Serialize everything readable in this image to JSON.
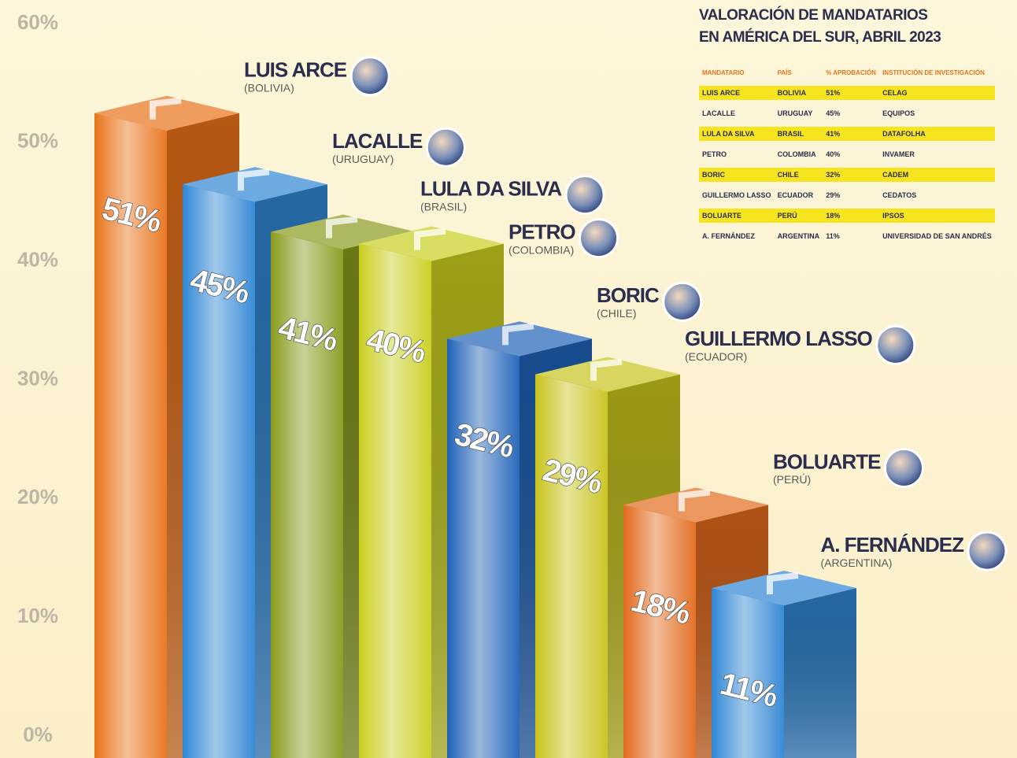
{
  "chart_data": {
    "type": "bar3d",
    "categories": [
      "LUIS ARCE",
      "LACALLE",
      "LULA DA SILVA",
      "PETRO",
      "BORIC",
      "GUILLERMO LASSO",
      "BOLUARTE",
      "A. FERNÁNDEZ"
    ],
    "countries": [
      "(BOLIVIA)",
      "(URUGUAY)",
      "(BRASIL)",
      "(COLOMBIA)",
      "(CHILE)",
      "(ECUADOR)",
      "(PERÚ)",
      "(ARGENTINA)"
    ],
    "values": [
      51,
      45,
      41,
      40,
      32,
      29,
      18,
      11
    ],
    "value_labels": [
      "51%",
      "45%",
      "41%",
      "40%",
      "32%",
      "29%",
      "18%",
      "11%"
    ],
    "colors": [
      "#e8731a",
      "#2f86d4",
      "#8a9a1c",
      "#c9cf1e",
      "#1f62b8",
      "#c8c41c",
      "#e26a1c",
      "#2f86d4"
    ],
    "ylim": [
      0,
      60
    ],
    "yticks": [
      {
        "value": 0,
        "label": "0%"
      },
      {
        "value": 10,
        "label": "10%"
      },
      {
        "value": 20,
        "label": "20%"
      },
      {
        "value": 30,
        "label": "30%"
      },
      {
        "value": 40,
        "label": "40%"
      },
      {
        "value": 50,
        "label": "50%"
      },
      {
        "value": 60,
        "label": "60%"
      }
    ]
  },
  "table": {
    "title": [
      "VALORACIÓN DE MANDATARIOS",
      "EN AMÉRICA DEL SUR, ABRIL 2023"
    ],
    "header": [
      "MANDATARIO",
      "PAÍS",
      "% APROBACIÓN",
      "INSTITUCIÓN DE INVESTIGACIÓN"
    ],
    "rows": [
      [
        "LUIS ARCE",
        "BOLIVIA",
        "51%",
        "CELAG"
      ],
      [
        "LACALLE",
        "URUGUAY",
        "45%",
        "EQUIPOS"
      ],
      [
        "LULA DA SILVA",
        "BRASIL",
        "41%",
        "DATAFOLHA"
      ],
      [
        "PETRO",
        "COLOMBIA",
        "40%",
        "INVAMER"
      ],
      [
        "BORIC",
        "CHILE",
        "32%",
        "CADEM"
      ],
      [
        "GUILLERMO LASSO",
        "ECUADOR",
        "29%",
        "CEDATOS"
      ],
      [
        "BOLUARTE",
        "PERÚ",
        "18%",
        "IPSOS"
      ],
      [
        "A. FERNÁNDEZ",
        "ARGENTINA",
        "11%",
        "UNIVERSIDAD DE SAN ANDRÉS"
      ]
    ]
  }
}
